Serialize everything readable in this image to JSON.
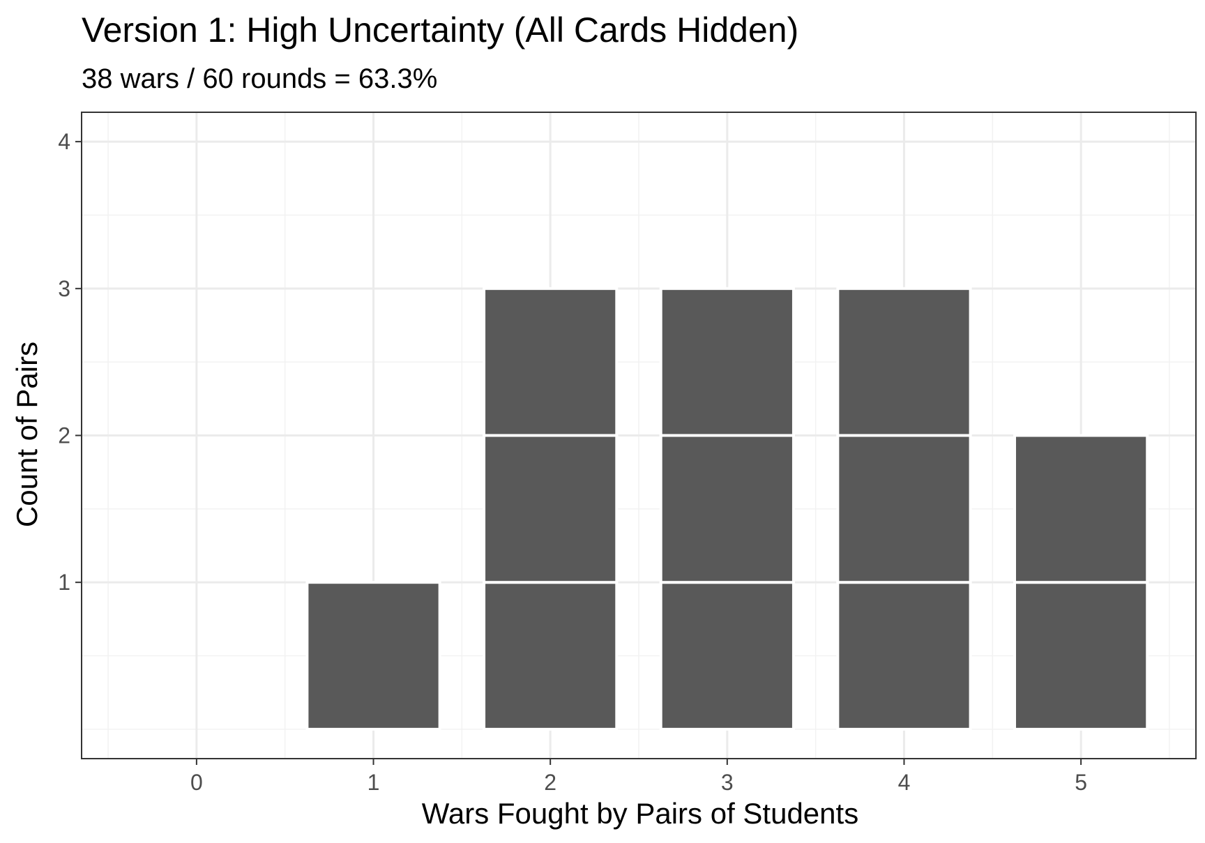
{
  "chart_data": {
    "type": "bar",
    "style": "dot-stack",
    "title": "Version 1: High Uncertainty (All Cards Hidden)",
    "subtitle": "38 wars / 60 rounds = 63.3%",
    "xlabel": "Wars Fought by Pairs of Students",
    "ylabel": "Count of Pairs",
    "categories": [
      0,
      1,
      2,
      3,
      4,
      5
    ],
    "values": [
      0,
      1,
      3,
      3,
      3,
      2
    ],
    "xlim": [
      -0.65,
      5.65
    ],
    "ylim": [
      -0.2,
      4.2
    ],
    "x_ticks": [
      0,
      1,
      2,
      3,
      4,
      5
    ],
    "y_ticks": [
      1,
      2,
      3,
      4
    ],
    "grid": true,
    "colors": {
      "bar_fill": "#595959",
      "bar_stroke": "#ffffff",
      "grid_major": "#ebebeb",
      "grid_minor": "#f2f2f2",
      "panel_border": "#333333",
      "tick_color": "#333333"
    }
  }
}
